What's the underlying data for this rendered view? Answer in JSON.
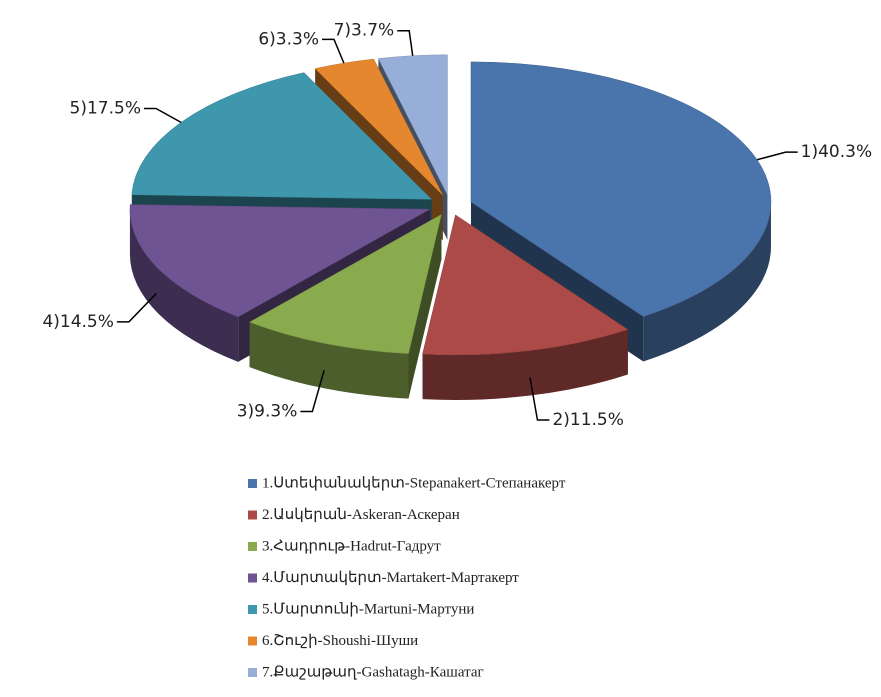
{
  "chart_data": {
    "type": "pie",
    "categories": [
      "1.Ստեփանակերտ-Stepanakert-Степанакерт",
      "2.Ասկերան-Askeran-Аскеран",
      "3.Հադրութ-Hadrut-Гадрут",
      "4.Մարտակերտ-Martakert-Мартакерт",
      "5.Մարտունի-Martuni-Мартуни",
      "6.Շուշի-Shoushi-Шуши",
      "7.Քաշաթաղ-Gashatagh-Кашатаг"
    ],
    "values": [
      40.3,
      11.5,
      9.3,
      14.5,
      17.5,
      3.3,
      3.7
    ],
    "value_labels": [
      "1)40.3%",
      "2)11.5%",
      "3)9.3%",
      "4)14.5%",
      "5)17.5%",
      "6)3.3%",
      "7)3.7%"
    ],
    "colors": [
      "#4a74ac",
      "#ac4a48",
      "#8aaa4e",
      "#6f5494",
      "#3e97ad",
      "#e4872e",
      "#97afd8"
    ],
    "legend": "bottom"
  }
}
